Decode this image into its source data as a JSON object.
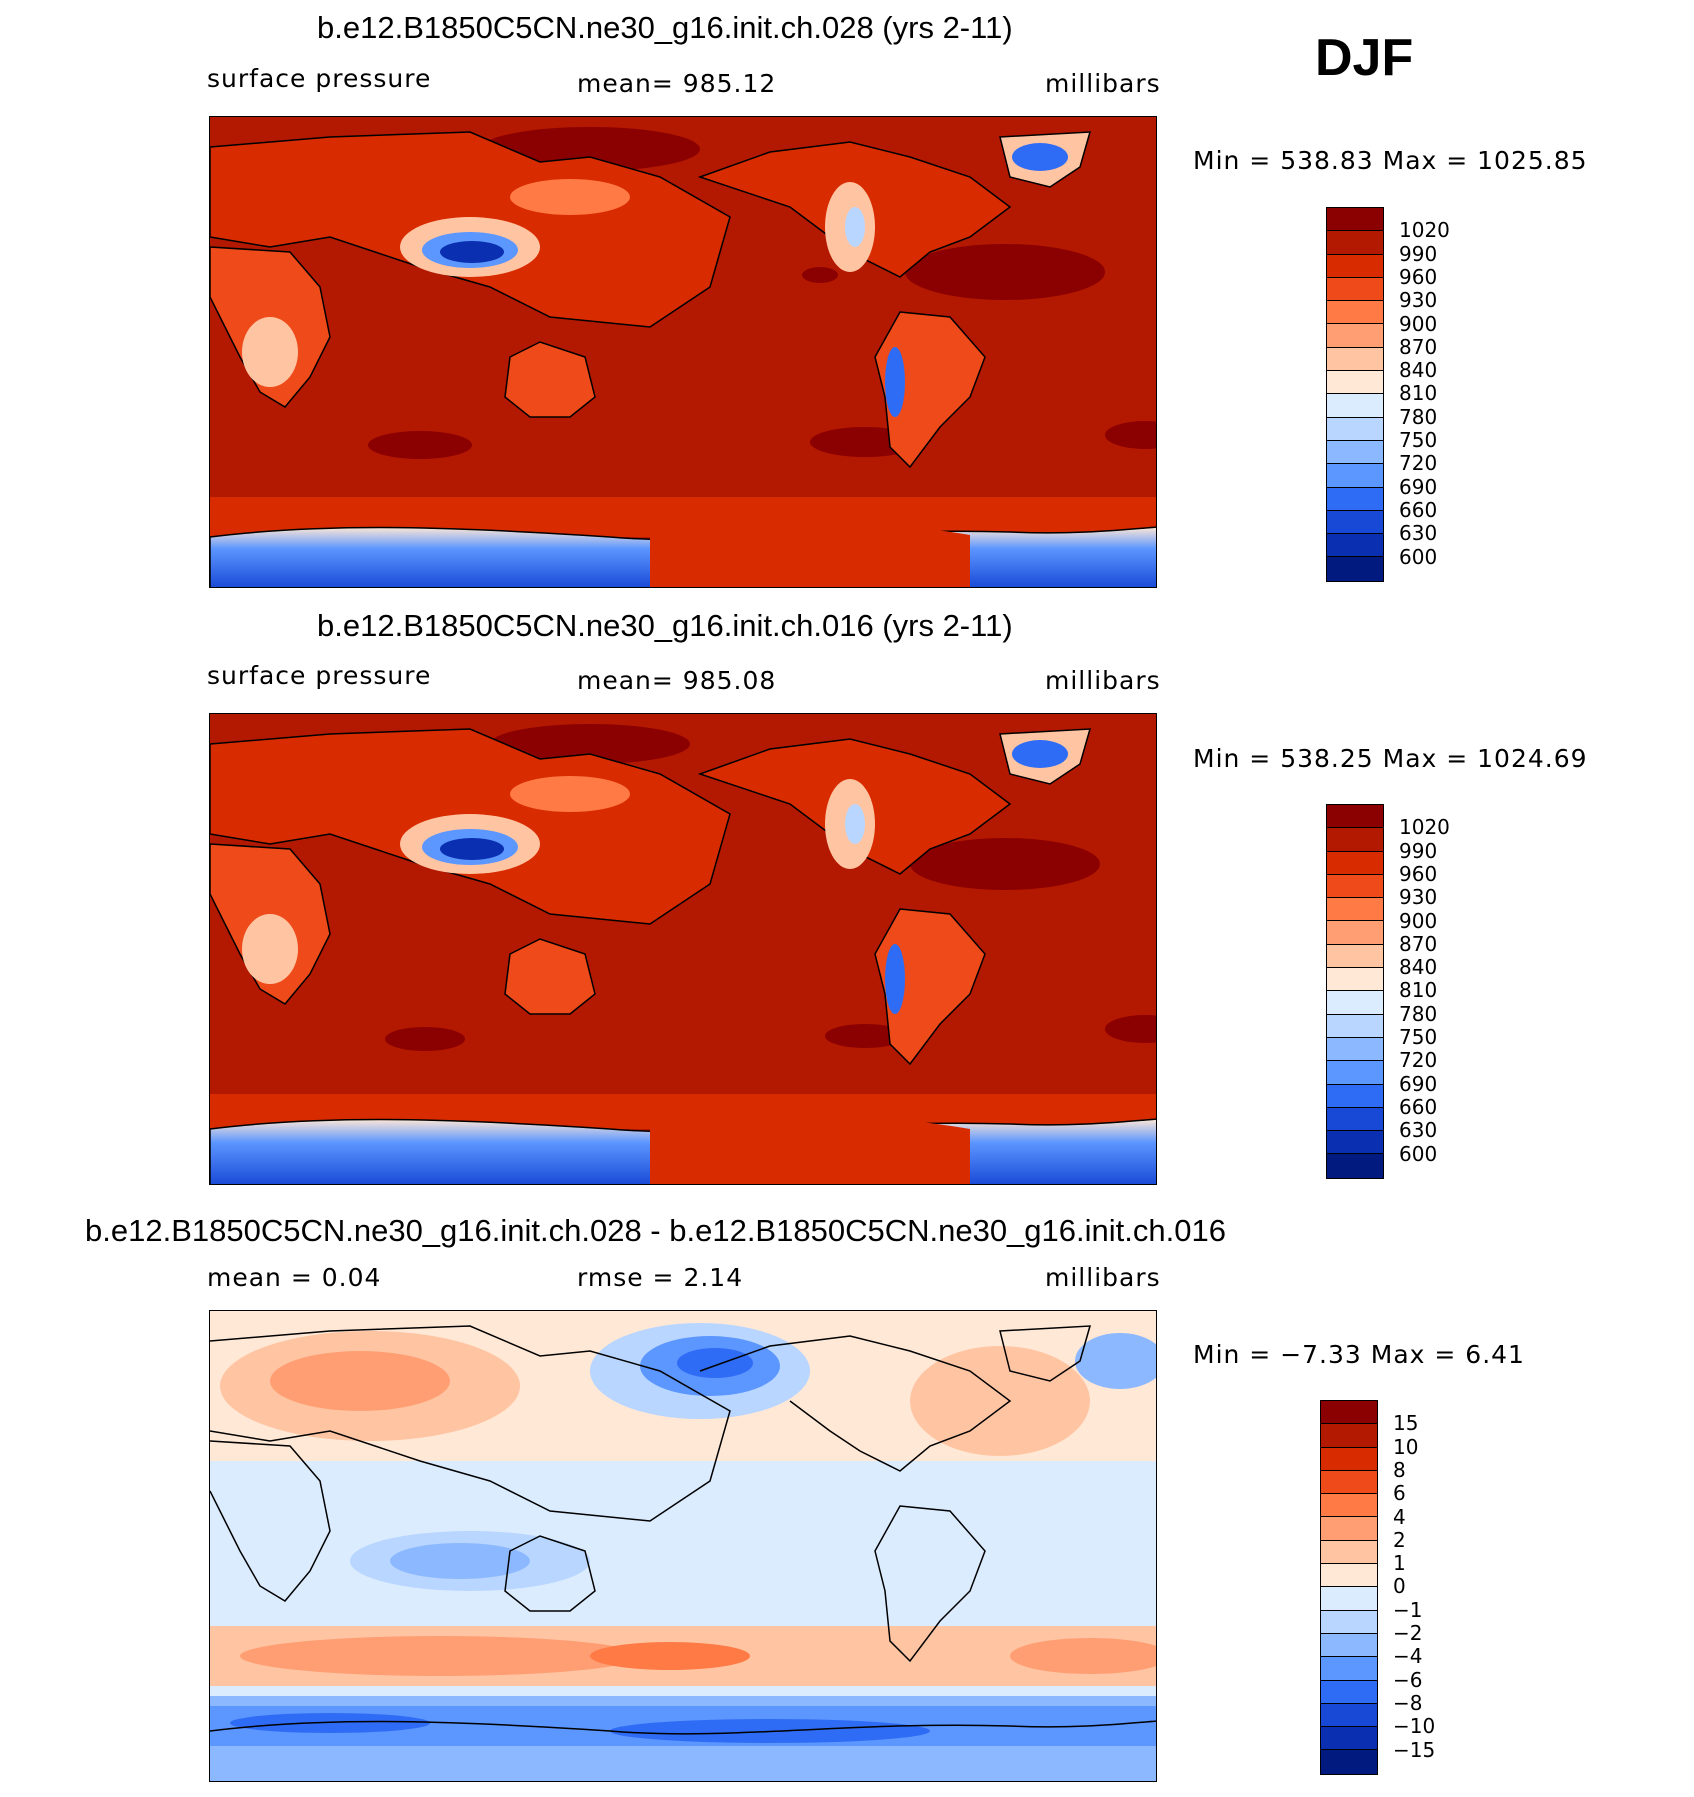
{
  "season": "DJF",
  "panels": [
    {
      "title": "b.e12.B1850C5CN.ne30_g16.init.ch.028 (yrs 2-11)",
      "left_label": "surface pressure",
      "center_label": "mean=  985.12",
      "units": "millibars",
      "minmax": "Min  =  538.83  Max  =  1025.85",
      "colorbar": {
        "labels": [
          "1020",
          "990",
          "960",
          "930",
          "900",
          "870",
          "840",
          "810",
          "780",
          "750",
          "720",
          "690",
          "660",
          "630",
          "600"
        ],
        "colors": [
          "#8b0000",
          "#b31800",
          "#d92b00",
          "#ef4a1a",
          "#ff7a45",
          "#ff9e73",
          "#ffc5a3",
          "#ffe8d6",
          "#dcecff",
          "#b8d6ff",
          "#8cb8ff",
          "#5c96ff",
          "#2f6cf5",
          "#1748d6",
          "#0a2fb0",
          "#001a80"
        ]
      }
    },
    {
      "title": "b.e12.B1850C5CN.ne30_g16.init.ch.016 (yrs 2-11)",
      "left_label": "surface pressure",
      "center_label": "mean=  985.08",
      "units": "millibars",
      "minmax": "Min  =  538.25  Max  =  1024.69",
      "colorbar": {
        "labels": [
          "1020",
          "990",
          "960",
          "930",
          "900",
          "870",
          "840",
          "810",
          "780",
          "750",
          "720",
          "690",
          "660",
          "630",
          "600"
        ],
        "colors": [
          "#8b0000",
          "#b31800",
          "#d92b00",
          "#ef4a1a",
          "#ff7a45",
          "#ff9e73",
          "#ffc5a3",
          "#ffe8d6",
          "#dcecff",
          "#b8d6ff",
          "#8cb8ff",
          "#5c96ff",
          "#2f6cf5",
          "#1748d6",
          "#0a2fb0",
          "#001a80"
        ]
      }
    },
    {
      "title": "b.e12.B1850C5CN.ne30_g16.init.ch.028 - b.e12.B1850C5CN.ne30_g16.init.ch.016",
      "left_label": "mean  =     0.04",
      "center_label": "rmse  =     2.14",
      "units": "millibars",
      "minmax": "Min  =   −7.33  Max  =      6.41",
      "colorbar": {
        "labels": [
          "15",
          "10",
          "8",
          "6",
          "4",
          "2",
          "1",
          "0",
          "−1",
          "−2",
          "−4",
          "−6",
          "−8",
          "−10",
          "−15"
        ],
        "colors": [
          "#8b0000",
          "#b31800",
          "#d92b00",
          "#ef4a1a",
          "#ff7a45",
          "#ff9e73",
          "#ffc5a3",
          "#ffe8d6",
          "#dcecff",
          "#b8d6ff",
          "#8cb8ff",
          "#5c96ff",
          "#2f6cf5",
          "#1748d6",
          "#0a2fb0",
          "#001a80"
        ]
      }
    }
  ]
}
